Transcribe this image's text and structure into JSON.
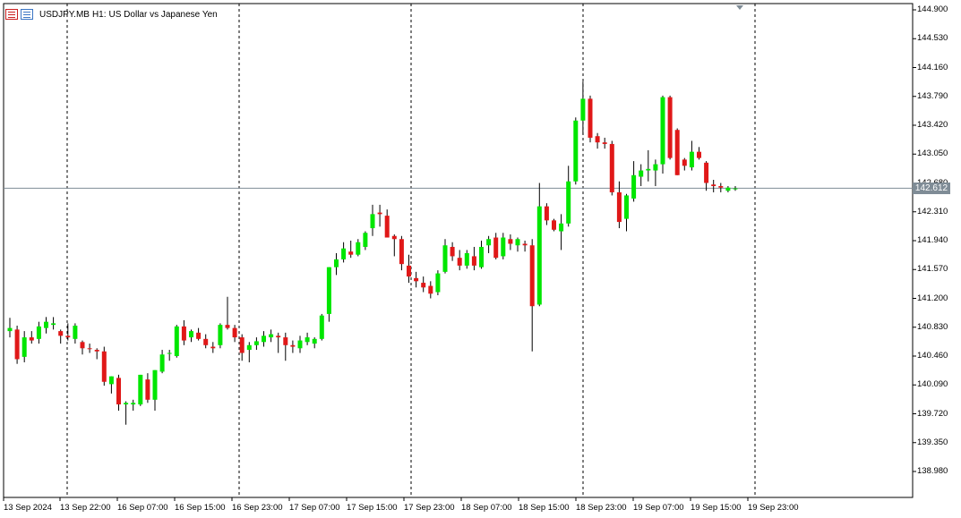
{
  "header": {
    "symbol": "USDJPY.MB",
    "timeframe": "H1:",
    "description": "US Dollar vs Japanese Yen"
  },
  "colors": {
    "bull": "#00e600",
    "bear": "#e01818",
    "grid": "#000000",
    "bid_line": "#7f8c96",
    "background": "#ffffff"
  },
  "current_price": "142.612",
  "chart_data": {
    "type": "candlestick",
    "y_axis_labels": [
      "144.900",
      "144.530",
      "144.160",
      "143.790",
      "143.420",
      "143.050",
      "142.680",
      "142.310",
      "141.940",
      "141.570",
      "141.200",
      "140.830",
      "140.460",
      "140.090",
      "139.720",
      "139.350",
      "138.980"
    ],
    "x_axis_labels": [
      "13 Sep 2024",
      "13 Sep 22:00",
      "16 Sep 07:00",
      "16 Sep 15:00",
      "16 Sep 23:00",
      "17 Sep 07:00",
      "17 Sep 15:00",
      "17 Sep 23:00",
      "18 Sep 07:00",
      "18 Sep 15:00",
      "18 Sep 23:00",
      "19 Sep 07:00",
      "19 Sep 15:00",
      "19 Sep 23:00"
    ],
    "ylim": [
      138.85,
      144.95
    ],
    "separators": [
      "13 Sep 22:00",
      "16 Sep 15:00",
      "17 Sep 07:00",
      "17 Sep 23:00",
      "18 Sep 15:00",
      "19 Sep 07:00"
    ],
    "candles": [
      [
        140.78,
        140.95,
        140.7,
        140.82
      ],
      [
        140.8,
        140.85,
        140.36,
        140.42
      ],
      [
        140.45,
        140.78,
        140.38,
        140.7
      ],
      [
        140.7,
        140.78,
        140.62,
        140.66
      ],
      [
        140.68,
        140.9,
        140.62,
        140.84
      ],
      [
        140.82,
        140.96,
        140.75,
        140.9
      ],
      [
        140.86,
        140.96,
        140.8,
        140.88
      ],
      [
        140.78,
        140.8,
        140.62,
        140.72
      ],
      [
        140.72,
        140.88,
        140.66,
        140.7
      ],
      [
        140.68,
        140.88,
        140.62,
        140.85
      ],
      [
        140.64,
        140.66,
        140.48,
        140.56
      ],
      [
        140.56,
        140.62,
        140.5,
        140.55
      ],
      [
        140.54,
        140.56,
        140.42,
        140.52
      ],
      [
        140.52,
        140.58,
        140.08,
        140.13
      ],
      [
        140.1,
        140.2,
        139.98,
        140.2
      ],
      [
        140.18,
        140.22,
        139.76,
        139.84
      ],
      [
        139.84,
        139.88,
        139.58,
        139.86
      ],
      [
        139.84,
        139.9,
        139.76,
        139.86
      ],
      [
        139.84,
        140.22,
        139.82,
        140.22
      ],
      [
        140.16,
        140.24,
        139.86,
        139.9
      ],
      [
        139.9,
        140.28,
        139.76,
        140.28
      ],
      [
        140.26,
        140.54,
        140.24,
        140.48
      ],
      [
        140.5,
        140.54,
        140.4,
        140.5
      ],
      [
        140.46,
        140.86,
        140.44,
        140.84
      ],
      [
        140.84,
        140.92,
        140.6,
        140.66
      ],
      [
        140.7,
        140.8,
        140.64,
        140.78
      ],
      [
        140.76,
        140.82,
        140.66,
        140.68
      ],
      [
        140.68,
        140.74,
        140.56,
        140.6
      ],
      [
        140.58,
        140.64,
        140.5,
        140.56
      ],
      [
        140.6,
        140.88,
        140.56,
        140.86
      ],
      [
        140.86,
        141.22,
        140.8,
        140.82
      ],
      [
        140.82,
        140.86,
        140.64,
        140.7
      ],
      [
        140.7,
        140.74,
        140.4,
        140.5
      ],
      [
        140.54,
        140.64,
        140.38,
        140.6
      ],
      [
        140.6,
        140.7,
        140.54,
        140.65
      ],
      [
        140.64,
        140.78,
        140.58,
        140.72
      ],
      [
        140.7,
        140.8,
        140.64,
        140.74
      ],
      [
        140.72,
        140.76,
        140.5,
        140.7
      ],
      [
        140.7,
        140.76,
        140.4,
        140.6
      ],
      [
        140.6,
        140.66,
        140.5,
        140.58
      ],
      [
        140.56,
        140.72,
        140.5,
        140.66
      ],
      [
        140.64,
        140.76,
        140.6,
        140.7
      ],
      [
        140.62,
        140.7,
        140.56,
        140.68
      ],
      [
        140.68,
        141.0,
        140.66,
        140.98
      ],
      [
        141.0,
        141.6,
        140.9,
        141.6
      ],
      [
        141.6,
        141.78,
        141.5,
        141.7
      ],
      [
        141.7,
        141.92,
        141.66,
        141.84
      ],
      [
        141.8,
        141.94,
        141.72,
        141.76
      ],
      [
        141.76,
        141.96,
        141.74,
        141.92
      ],
      [
        141.86,
        142.06,
        141.82,
        142.04
      ],
      [
        142.1,
        142.4,
        142.0,
        142.28
      ],
      [
        142.3,
        142.4,
        142.12,
        142.28
      ],
      [
        142.26,
        142.34,
        141.98,
        141.98
      ],
      [
        142.0,
        142.02,
        141.74,
        141.96
      ],
      [
        141.96,
        142.0,
        141.56,
        141.64
      ],
      [
        141.62,
        141.76,
        141.4,
        141.48
      ],
      [
        141.46,
        141.54,
        141.34,
        141.42
      ],
      [
        141.4,
        141.48,
        141.28,
        141.34
      ],
      [
        141.36,
        141.42,
        141.2,
        141.26
      ],
      [
        141.28,
        141.56,
        141.24,
        141.52
      ],
      [
        141.54,
        141.96,
        141.52,
        141.88
      ],
      [
        141.86,
        141.92,
        141.68,
        141.74
      ],
      [
        141.72,
        141.82,
        141.56,
        141.62
      ],
      [
        141.62,
        141.82,
        141.58,
        141.78
      ],
      [
        141.74,
        141.86,
        141.56,
        141.62
      ],
      [
        141.6,
        141.94,
        141.58,
        141.86
      ],
      [
        141.88,
        142.0,
        141.78,
        141.96
      ],
      [
        141.98,
        142.04,
        141.7,
        141.72
      ],
      [
        141.74,
        142.04,
        141.7,
        141.98
      ],
      [
        141.96,
        142.02,
        141.82,
        141.9
      ],
      [
        141.88,
        141.98,
        141.8,
        141.96
      ],
      [
        141.9,
        141.94,
        141.8,
        141.88
      ],
      [
        141.88,
        141.96,
        140.52,
        141.1
      ],
      [
        141.12,
        142.68,
        141.1,
        142.38
      ],
      [
        142.38,
        142.42,
        142.14,
        142.2
      ],
      [
        142.2,
        142.22,
        142.06,
        142.08
      ],
      [
        142.06,
        142.28,
        141.82,
        142.16
      ],
      [
        142.16,
        142.9,
        142.12,
        142.7
      ],
      [
        142.7,
        143.52,
        142.66,
        143.48
      ],
      [
        143.48,
        143.98,
        143.3,
        143.76
      ],
      [
        143.76,
        143.8,
        143.2,
        143.26
      ],
      [
        143.28,
        143.32,
        143.12,
        143.2
      ],
      [
        143.2,
        143.26,
        143.12,
        143.18
      ],
      [
        143.18,
        143.22,
        142.52,
        142.56
      ],
      [
        142.56,
        142.7,
        142.1,
        142.18
      ],
      [
        142.22,
        142.54,
        142.06,
        142.52
      ],
      [
        142.48,
        142.96,
        142.44,
        142.78
      ],
      [
        142.76,
        142.92,
        142.64,
        142.84
      ],
      [
        142.84,
        143.1,
        142.7,
        142.86
      ],
      [
        142.84,
        142.98,
        142.64,
        142.92
      ],
      [
        142.92,
        143.8,
        142.8,
        143.78
      ],
      [
        143.78,
        143.8,
        142.98,
        143.0
      ],
      [
        143.36,
        143.38,
        142.78,
        142.78
      ],
      [
        142.98,
        143.0,
        142.84,
        142.9
      ],
      [
        142.88,
        143.22,
        142.84,
        143.08
      ],
      [
        143.08,
        143.14,
        142.98,
        143.0
      ],
      [
        142.94,
        142.96,
        142.58,
        142.68
      ],
      [
        142.66,
        142.72,
        142.56,
        142.64
      ],
      [
        142.64,
        142.68,
        142.56,
        142.62
      ],
      [
        142.58,
        142.64,
        142.56,
        142.62
      ],
      [
        142.6,
        142.64,
        142.58,
        142.61
      ]
    ]
  }
}
